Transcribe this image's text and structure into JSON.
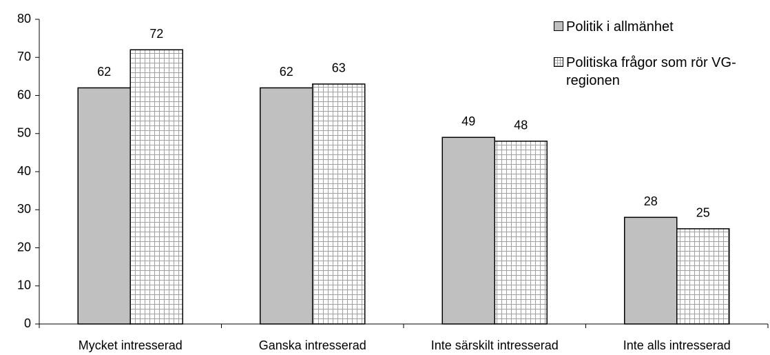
{
  "chart_data": {
    "type": "bar",
    "categories": [
      "Mycket intresserad",
      "Ganska intresserad",
      "Inte särskilt intresserad",
      "Inte alls intresserad"
    ],
    "series": [
      {
        "name": "Politik i allmänhet",
        "color": "#c0c0c0",
        "values": [
          62,
          62,
          49,
          28
        ]
      },
      {
        "name": "Politiska frågor som rör VG-regionen",
        "color": "#ffffff",
        "hatch": "grid",
        "values": [
          72,
          63,
          48,
          25
        ]
      }
    ],
    "ylim": [
      0,
      80
    ],
    "yticks": [
      0,
      10,
      20,
      30,
      40,
      50,
      60,
      70,
      80
    ],
    "legend": "upper right"
  }
}
